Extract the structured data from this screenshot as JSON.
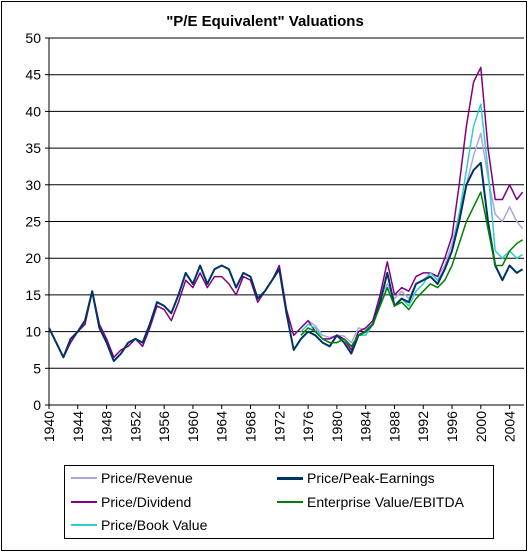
{
  "chart_data": {
    "type": "line",
    "title": "\"P/E Equivalent\" Valuations",
    "xlabel": "",
    "ylabel": "",
    "xlim": [
      1940,
      2006
    ],
    "ylim": [
      0,
      50
    ],
    "yticks": [
      0,
      5,
      10,
      15,
      20,
      25,
      30,
      35,
      40,
      45,
      50
    ],
    "xticks": [
      "1940",
      "1944",
      "1948",
      "1952",
      "1956",
      "1960",
      "1964",
      "1968",
      "1972",
      "1976",
      "1980",
      "1984",
      "1988",
      "1992",
      "1996",
      "2000",
      "2004"
    ],
    "grid": "horizontal",
    "legend_position": "bottom",
    "series": [
      {
        "name": "Price/Revenue",
        "color": "#A8A8E0",
        "x": [
          1975,
          1976,
          1977,
          1978,
          1979,
          1980,
          1981,
          1982,
          1983,
          1984,
          1985,
          1986,
          1987,
          1988,
          1989,
          1990,
          1991,
          1992,
          1993,
          1994,
          1995,
          1996,
          1997,
          1998,
          1999,
          2000,
          2001,
          2002,
          2003,
          2004,
          2005,
          2005.8
        ],
        "y": [
          10.5,
          11.5,
          10.8,
          9.5,
          9.2,
          9.5,
          9.4,
          8.5,
          10.5,
          10.2,
          11.5,
          14.5,
          16.5,
          14.5,
          15.5,
          14.5,
          16.5,
          17,
          18,
          17.5,
          19,
          22,
          26,
          30,
          34,
          37,
          31,
          26,
          25,
          27,
          25,
          24
        ]
      },
      {
        "name": "Price/Dividend",
        "color": "#800080",
        "x": [
          1940,
          1941,
          1942,
          1943,
          1944,
          1945,
          1946,
          1947,
          1948,
          1949,
          1950,
          1951,
          1952,
          1953,
          1954,
          1955,
          1956,
          1957,
          1958,
          1959,
          1960,
          1961,
          1962,
          1963,
          1964,
          1965,
          1966,
          1967,
          1968,
          1969,
          1970,
          1971,
          1972,
          1973,
          1974,
          1975,
          1976,
          1977,
          1978,
          1979,
          1980,
          1981,
          1982,
          1983,
          1984,
          1985,
          1986,
          1987,
          1988,
          1989,
          1990,
          1991,
          1992,
          1993,
          1994,
          1995,
          1996,
          1997,
          1998,
          1999,
          2000,
          2001,
          2002,
          2003,
          2004,
          2005,
          2005.8
        ],
        "y": [
          10.5,
          8.5,
          6.5,
          8.5,
          10,
          11,
          15.5,
          11,
          9,
          6.5,
          7.5,
          8,
          9,
          8,
          10.5,
          13.5,
          13,
          11.5,
          14,
          17,
          16,
          18,
          16,
          17.5,
          17.5,
          16.5,
          15,
          17.5,
          17,
          14,
          15.5,
          17,
          19,
          13,
          9.5,
          10.5,
          11.5,
          10,
          9,
          9,
          9.5,
          9,
          7.5,
          10,
          10.5,
          11.5,
          15,
          19.5,
          15,
          16,
          15.5,
          17.5,
          18,
          18,
          17.5,
          20,
          23,
          30,
          38,
          44,
          46,
          35,
          28,
          28,
          30,
          28,
          29
        ]
      },
      {
        "name": "Price/Book Value",
        "color": "#33CCCC",
        "x": [
          1975,
          1976,
          1977,
          1978,
          1979,
          1980,
          1981,
          1982,
          1983,
          1984,
          1985,
          1986,
          1987,
          1988,
          1989,
          1990,
          1991,
          1992,
          1993,
          1994,
          1995,
          1996,
          1997,
          1998,
          1999,
          2000,
          2001,
          2002,
          2003,
          2004,
          2005,
          2005.8
        ],
        "y": [
          10,
          11,
          10.5,
          9,
          8.5,
          8.5,
          9,
          8,
          9.5,
          9.5,
          11,
          13.5,
          16,
          13.5,
          14.5,
          13.5,
          15.5,
          16.5,
          18,
          17,
          18.5,
          21,
          26,
          32,
          38,
          41,
          32,
          21,
          20,
          21,
          20,
          20.5
        ]
      },
      {
        "name": "Price/Peak-Earnings",
        "color": "#003366",
        "x": [
          1940,
          1941,
          1942,
          1943,
          1944,
          1945,
          1946,
          1947,
          1948,
          1949,
          1950,
          1951,
          1952,
          1953,
          1954,
          1955,
          1956,
          1957,
          1958,
          1959,
          1960,
          1961,
          1962,
          1963,
          1964,
          1965,
          1966,
          1967,
          1968,
          1969,
          1970,
          1971,
          1972,
          1973,
          1974,
          1975,
          1976,
          1977,
          1978,
          1979,
          1980,
          1981,
          1982,
          1983,
          1984,
          1985,
          1986,
          1987,
          1988,
          1989,
          1990,
          1991,
          1992,
          1993,
          1994,
          1995,
          1996,
          1997,
          1998,
          1999,
          2000,
          2001,
          2002,
          2003,
          2004,
          2005,
          2005.8
        ],
        "y": [
          10.5,
          8.5,
          6.5,
          9,
          10,
          11.5,
          15.5,
          10.5,
          8.5,
          6,
          7,
          8.5,
          9,
          8.5,
          11,
          14,
          13.5,
          12.5,
          15,
          18,
          16.5,
          19,
          16.5,
          18.5,
          19,
          18.5,
          16,
          18,
          17.5,
          14.5,
          15.5,
          17,
          18.5,
          12.5,
          7.5,
          9,
          10,
          9.5,
          8.5,
          8,
          9.5,
          8.5,
          7,
          9.5,
          10,
          11,
          14,
          18,
          13.5,
          14.5,
          14,
          16.5,
          17,
          17.5,
          16.5,
          18.5,
          21,
          25,
          30,
          32,
          33,
          25,
          19,
          17,
          19,
          18,
          18.5
        ]
      },
      {
        "name": "Enterprise Value/EBITDA",
        "color": "#008000",
        "x": [
          1975,
          1976,
          1977,
          1978,
          1979,
          1980,
          1981,
          1982,
          1983,
          1984,
          1985,
          1986,
          1987,
          1988,
          1989,
          1990,
          1991,
          1992,
          1993,
          1994,
          1995,
          1996,
          1997,
          1998,
          1999,
          2000,
          2001,
          2002,
          2003,
          2004,
          2005,
          2005.8
        ],
        "y": [
          9.5,
          10.5,
          10,
          9,
          8.5,
          8.5,
          9,
          8,
          9.5,
          10,
          11,
          13.5,
          16,
          13.5,
          14,
          13,
          14.5,
          15.5,
          16.5,
          16,
          17,
          19,
          22,
          25,
          27,
          29,
          24,
          19,
          19,
          21,
          22,
          22.5
        ]
      }
    ]
  }
}
